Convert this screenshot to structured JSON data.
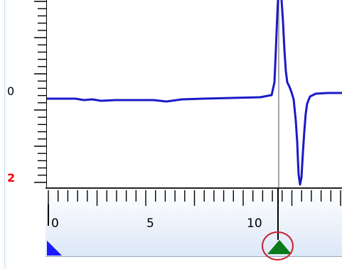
{
  "vertical_ruler": {
    "labels": [
      {
        "text": "0",
        "color": "#000000"
      },
      {
        "text": "2",
        "color": "#ff0000"
      }
    ]
  },
  "horizontal_ruler": {
    "labels": [
      "0",
      "5",
      "10"
    ]
  },
  "colors": {
    "trace": "#1a1ac8",
    "cursor_line": "#888888",
    "marker_green": "#0a7a1a",
    "marker_blue": "#1a1aff",
    "highlight_circle": "#c8202a"
  },
  "icons": {
    "left_marker": "blue-triangle-marker",
    "cursor_marker": "green-triangle-marker"
  }
}
